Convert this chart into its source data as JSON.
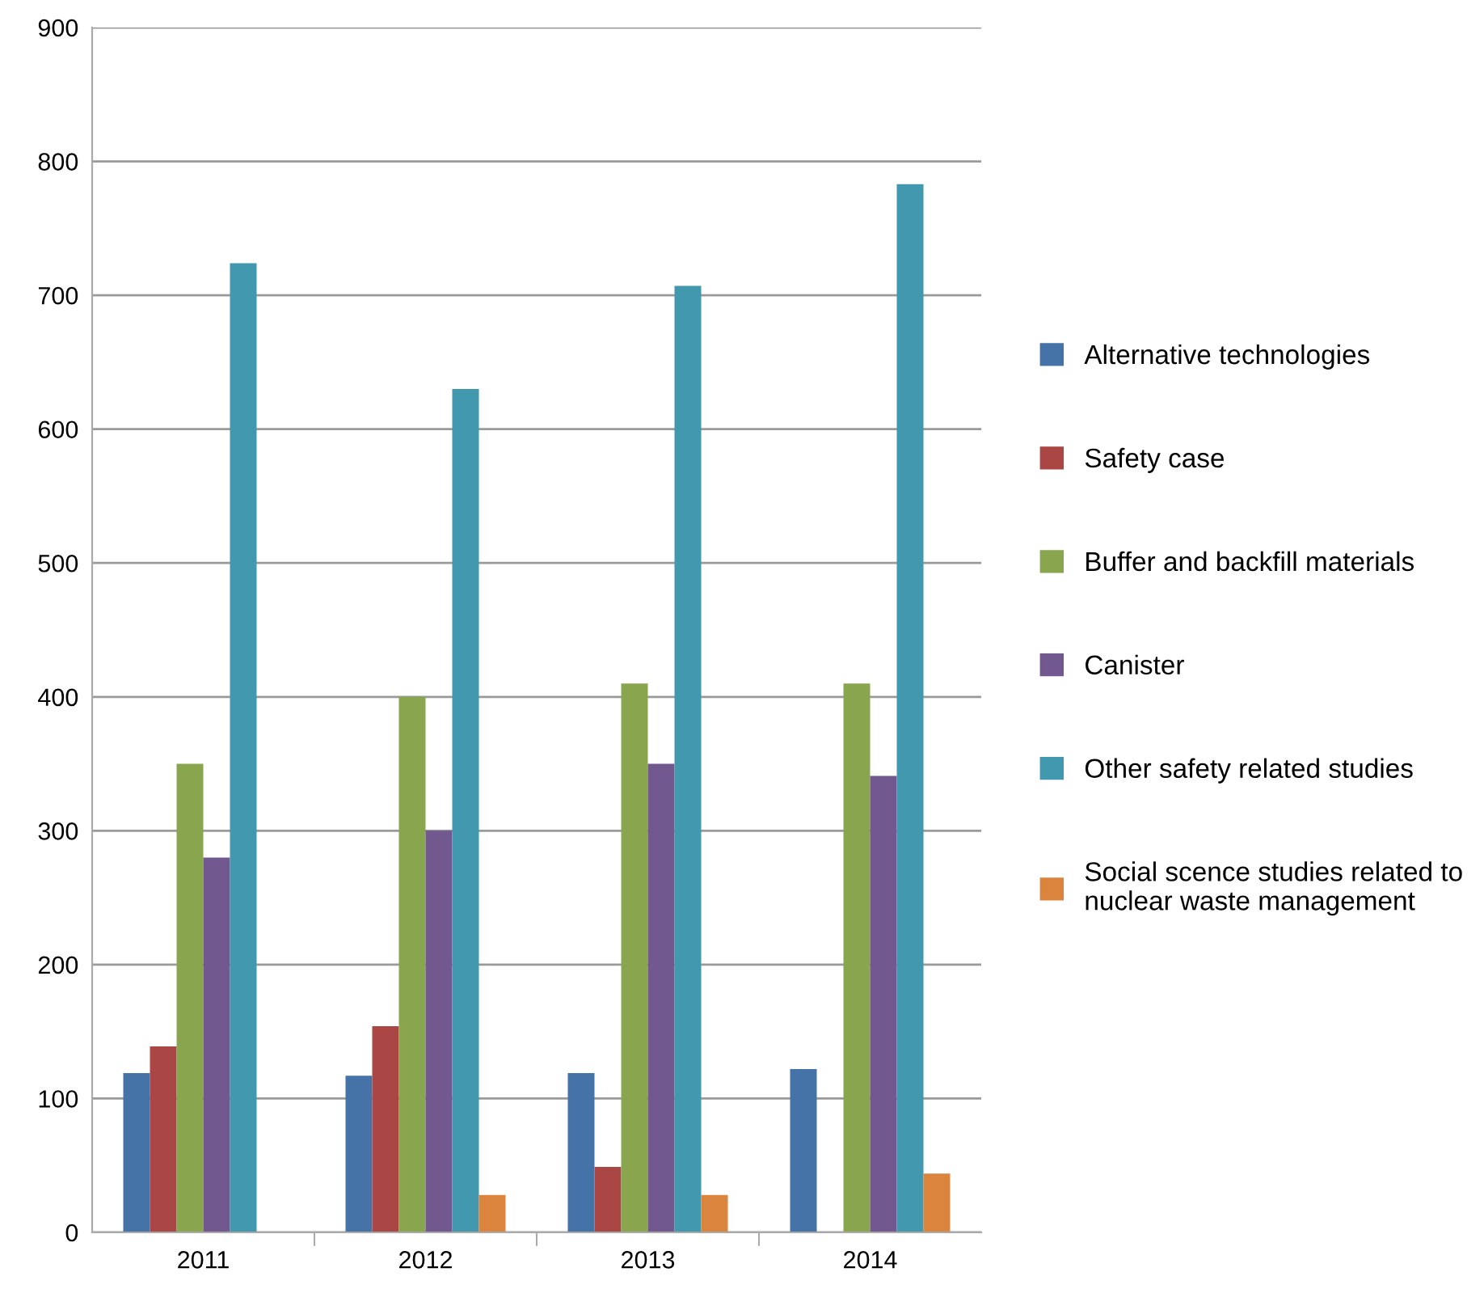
{
  "chart_data": {
    "type": "bar",
    "categories": [
      "2011",
      "2012",
      "2013",
      "2014"
    ],
    "series": [
      {
        "name": "Alternative technologies",
        "color": "#4572a7",
        "values": [
          119,
          117,
          119,
          122
        ]
      },
      {
        "name": "Safety case",
        "color": "#aa4643",
        "values": [
          139,
          154,
          49,
          null
        ]
      },
      {
        "name": "Buffer and backfill materials",
        "color": "#89a54e",
        "values": [
          350,
          400,
          410,
          410
        ]
      },
      {
        "name": "Canister",
        "color": "#71588f",
        "values": [
          280,
          300,
          350,
          341
        ]
      },
      {
        "name": "Other safety related studies",
        "color": "#4198af",
        "values": [
          724,
          630,
          707,
          783
        ]
      },
      {
        "name": "Social scence studies related to nuclear waste management",
        "color": "#db843d",
        "values": [
          null,
          28,
          28,
          44
        ]
      }
    ],
    "ylim": [
      0,
      900
    ],
    "yticks": [
      0,
      100,
      200,
      300,
      400,
      500,
      600,
      700,
      800,
      900
    ],
    "grid": "y",
    "legend": "right"
  }
}
